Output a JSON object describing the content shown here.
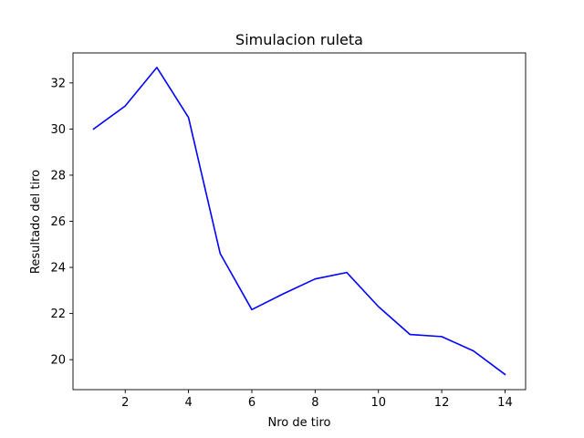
{
  "chart_data": {
    "type": "line",
    "title": "Simulacion ruleta",
    "xlabel": "Nro de tiro",
    "ylabel": "Resultado del tiro",
    "xlim": [
      0.35,
      14.65
    ],
    "ylim": [
      18.7,
      33.3
    ],
    "xticks": [
      2,
      4,
      6,
      8,
      10,
      12,
      14
    ],
    "yticks": [
      20,
      22,
      24,
      26,
      28,
      30,
      32
    ],
    "grid": false,
    "legend": "none",
    "series": [
      {
        "color": "#0000ff",
        "x": [
          1,
          2,
          3,
          4,
          5,
          6,
          7,
          8,
          9,
          10,
          11,
          12,
          13,
          14
        ],
        "y": [
          30.0,
          31.0,
          32.67,
          30.5,
          24.6,
          22.17,
          22.86,
          23.5,
          23.78,
          22.3,
          21.09,
          21.0,
          20.38,
          19.36
        ]
      }
    ]
  }
}
